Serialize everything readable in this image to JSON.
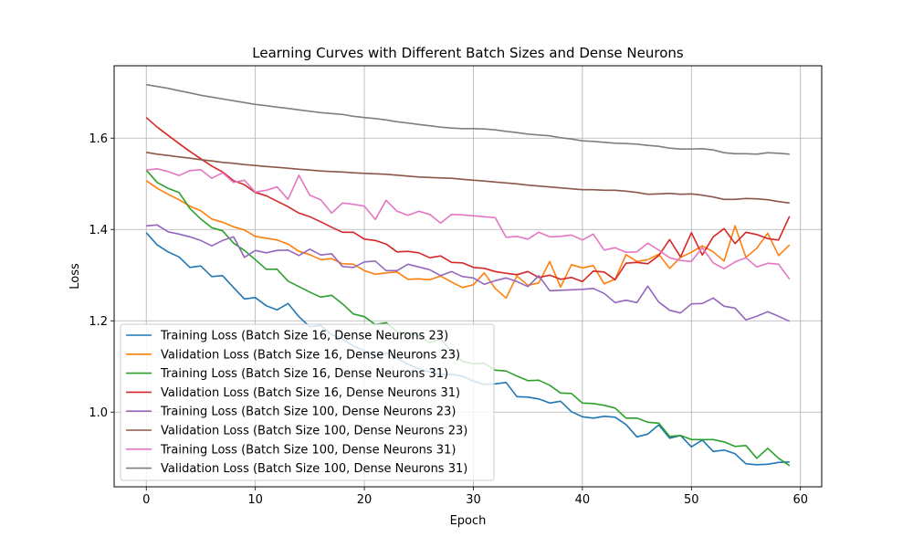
{
  "chart_data": {
    "type": "line",
    "title": "Learning Curves with Different Batch Sizes and Dense Neurons",
    "xlabel": "Epoch",
    "ylabel": "Loss",
    "xlim": [
      -2.95,
      61.95
    ],
    "ylim": [
      0.8365,
      1.7585
    ],
    "xticks": [
      0,
      10,
      20,
      30,
      40,
      50,
      60
    ],
    "yticks": [
      1.0,
      1.2,
      1.4,
      1.6
    ],
    "ytick_labels": [
      "1.0",
      "1.2",
      "1.4",
      "1.6"
    ],
    "grid": true,
    "legend_position": "lower-left",
    "series": [
      {
        "name": "Training Loss (Batch Size 16, Dense Neurons 23)",
        "color": "#1f77b4",
        "values": [
          1.393,
          1.366,
          1.351,
          1.34,
          1.317,
          1.32,
          1.297,
          1.299,
          1.273,
          1.248,
          1.251,
          1.233,
          1.224,
          1.238,
          1.209,
          1.187,
          1.19,
          1.17,
          1.16,
          1.145,
          1.135,
          1.125,
          1.13,
          1.118,
          1.105,
          1.095,
          1.088,
          1.082,
          1.083,
          1.079,
          1.068,
          1.061,
          1.062,
          1.065,
          1.034,
          1.033,
          1.029,
          1.02,
          1.024,
          1.001,
          0.99,
          0.987,
          0.991,
          0.989,
          0.973,
          0.946,
          0.952,
          0.972,
          0.943,
          0.949,
          0.924,
          0.939,
          0.914,
          0.917,
          0.909,
          0.887,
          0.885,
          0.886,
          0.89,
          0.891
        ]
      },
      {
        "name": "Validation Loss (Batch Size 16, Dense Neurons 23)",
        "color": "#ff7f0e",
        "values": [
          1.507,
          1.49,
          1.477,
          1.465,
          1.451,
          1.441,
          1.423,
          1.416,
          1.406,
          1.399,
          1.385,
          1.381,
          1.377,
          1.368,
          1.352,
          1.345,
          1.334,
          1.336,
          1.325,
          1.324,
          1.31,
          1.302,
          1.305,
          1.307,
          1.291,
          1.292,
          1.29,
          1.298,
          1.285,
          1.273,
          1.279,
          1.305,
          1.271,
          1.25,
          1.298,
          1.278,
          1.283,
          1.33,
          1.274,
          1.323,
          1.316,
          1.321,
          1.281,
          1.291,
          1.345,
          1.33,
          1.334,
          1.346,
          1.315,
          1.339,
          1.35,
          1.364,
          1.351,
          1.331,
          1.408,
          1.339,
          1.359,
          1.392,
          1.343,
          1.366
        ]
      },
      {
        "name": "Training Loss (Batch Size 16, Dense Neurons 31)",
        "color": "#2ca02c",
        "values": [
          1.53,
          1.503,
          1.49,
          1.481,
          1.446,
          1.423,
          1.404,
          1.397,
          1.37,
          1.354,
          1.334,
          1.313,
          1.313,
          1.287,
          1.275,
          1.263,
          1.252,
          1.256,
          1.237,
          1.215,
          1.209,
          1.192,
          1.196,
          1.176,
          1.173,
          1.167,
          1.152,
          1.16,
          1.133,
          1.111,
          1.106,
          1.107,
          1.092,
          1.09,
          1.079,
          1.069,
          1.07,
          1.059,
          1.042,
          1.041,
          1.02,
          1.019,
          1.015,
          1.009,
          0.987,
          0.987,
          0.978,
          0.976,
          0.947,
          0.949,
          0.94,
          0.94,
          0.94,
          0.935,
          0.925,
          0.927,
          0.899,
          0.921,
          0.899,
          0.883
        ]
      },
      {
        "name": "Validation Loss (Batch Size 16, Dense Neurons 31)",
        "color": "#d62728",
        "values": [
          1.645,
          1.624,
          1.606,
          1.588,
          1.571,
          1.555,
          1.539,
          1.526,
          1.507,
          1.498,
          1.481,
          1.474,
          1.462,
          1.45,
          1.436,
          1.428,
          1.417,
          1.405,
          1.394,
          1.394,
          1.379,
          1.376,
          1.368,
          1.351,
          1.352,
          1.349,
          1.338,
          1.342,
          1.328,
          1.327,
          1.317,
          1.315,
          1.308,
          1.304,
          1.301,
          1.308,
          1.295,
          1.3,
          1.291,
          1.295,
          1.286,
          1.309,
          1.307,
          1.29,
          1.326,
          1.328,
          1.325,
          1.343,
          1.378,
          1.34,
          1.393,
          1.344,
          1.384,
          1.402,
          1.369,
          1.394,
          1.389,
          1.38,
          1.377,
          1.429
        ]
      },
      {
        "name": "Training Loss (Batch Size 100, Dense Neurons 23)",
        "color": "#9467bd",
        "values": [
          1.408,
          1.41,
          1.395,
          1.39,
          1.384,
          1.376,
          1.364,
          1.376,
          1.384,
          1.339,
          1.354,
          1.349,
          1.354,
          1.355,
          1.343,
          1.357,
          1.344,
          1.347,
          1.319,
          1.317,
          1.329,
          1.331,
          1.31,
          1.31,
          1.324,
          1.318,
          1.312,
          1.299,
          1.308,
          1.297,
          1.294,
          1.28,
          1.288,
          1.294,
          1.286,
          1.275,
          1.299,
          1.266,
          1.267,
          1.268,
          1.269,
          1.271,
          1.26,
          1.24,
          1.245,
          1.24,
          1.276,
          1.241,
          1.223,
          1.217,
          1.237,
          1.238,
          1.25,
          1.232,
          1.228,
          1.202,
          1.21,
          1.22,
          1.21,
          1.199
        ]
      },
      {
        "name": "Validation Loss (Batch Size 100, Dense Neurons 23)",
        "color": "#8c564b",
        "values": [
          1.569,
          1.565,
          1.562,
          1.559,
          1.556,
          1.553,
          1.55,
          1.547,
          1.545,
          1.542,
          1.54,
          1.538,
          1.536,
          1.534,
          1.532,
          1.53,
          1.528,
          1.527,
          1.526,
          1.524,
          1.523,
          1.522,
          1.521,
          1.519,
          1.517,
          1.515,
          1.514,
          1.513,
          1.512,
          1.51,
          1.508,
          1.506,
          1.504,
          1.502,
          1.5,
          1.497,
          1.495,
          1.493,
          1.491,
          1.489,
          1.487,
          1.487,
          1.486,
          1.486,
          1.484,
          1.481,
          1.477,
          1.478,
          1.479,
          1.477,
          1.478,
          1.475,
          1.471,
          1.466,
          1.466,
          1.468,
          1.467,
          1.465,
          1.461,
          1.458
        ]
      },
      {
        "name": "Training Loss (Batch Size 100, Dense Neurons 31)",
        "color": "#e377c2",
        "values": [
          1.53,
          1.533,
          1.527,
          1.518,
          1.529,
          1.531,
          1.512,
          1.524,
          1.503,
          1.508,
          1.482,
          1.486,
          1.493,
          1.466,
          1.519,
          1.475,
          1.465,
          1.436,
          1.458,
          1.455,
          1.451,
          1.422,
          1.464,
          1.44,
          1.431,
          1.44,
          1.433,
          1.414,
          1.433,
          1.432,
          1.43,
          1.428,
          1.426,
          1.383,
          1.385,
          1.379,
          1.394,
          1.384,
          1.385,
          1.388,
          1.377,
          1.39,
          1.355,
          1.36,
          1.35,
          1.351,
          1.37,
          1.355,
          1.338,
          1.332,
          1.33,
          1.36,
          1.327,
          1.314,
          1.329,
          1.338,
          1.318,
          1.326,
          1.324,
          1.291
        ]
      },
      {
        "name": "Validation Loss (Batch Size 100, Dense Neurons 31)",
        "color": "#7f7f7f",
        "values": [
          1.717,
          1.713,
          1.709,
          1.704,
          1.699,
          1.694,
          1.69,
          1.686,
          1.682,
          1.678,
          1.674,
          1.671,
          1.668,
          1.665,
          1.662,
          1.659,
          1.656,
          1.654,
          1.652,
          1.648,
          1.645,
          1.643,
          1.64,
          1.636,
          1.633,
          1.63,
          1.627,
          1.624,
          1.622,
          1.621,
          1.621,
          1.62,
          1.618,
          1.615,
          1.612,
          1.609,
          1.607,
          1.605,
          1.601,
          1.598,
          1.594,
          1.593,
          1.591,
          1.589,
          1.588,
          1.587,
          1.584,
          1.582,
          1.578,
          1.576,
          1.576,
          1.577,
          1.574,
          1.568,
          1.566,
          1.566,
          1.565,
          1.568,
          1.567,
          1.565
        ]
      }
    ]
  }
}
